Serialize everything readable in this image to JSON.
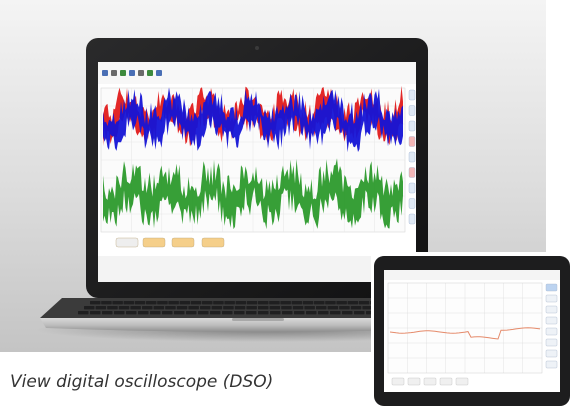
{
  "caption": "View digital oscilloscope (DSO)",
  "colors": {
    "backdrop_top": "#f2f2f2",
    "backdrop_bottom": "#c9c9c9",
    "bezel": "#1b1b1c",
    "screen_bg": "#ffffff",
    "plot_bg": "#fbfbfb",
    "signal_red": "#e21b1b",
    "signal_blue": "#1414d6",
    "signal_green": "#2c9a2c",
    "side_button": "#dfe8f4",
    "side_button_accent": "#f2b6b6",
    "bottom_button": "#f5cf8a",
    "tablet_trace": "#e58a6a"
  },
  "laptop": {
    "toolbar_icons": [
      "open-icon",
      "save-icon",
      "zoom-icon",
      "cursor-icon",
      "pan-icon",
      "grid-icon",
      "settings-icon"
    ],
    "side_buttons": 9,
    "bottom_buttons": 4
  },
  "tablet": {
    "side_buttons": 8,
    "bottom_buttons": 5
  }
}
